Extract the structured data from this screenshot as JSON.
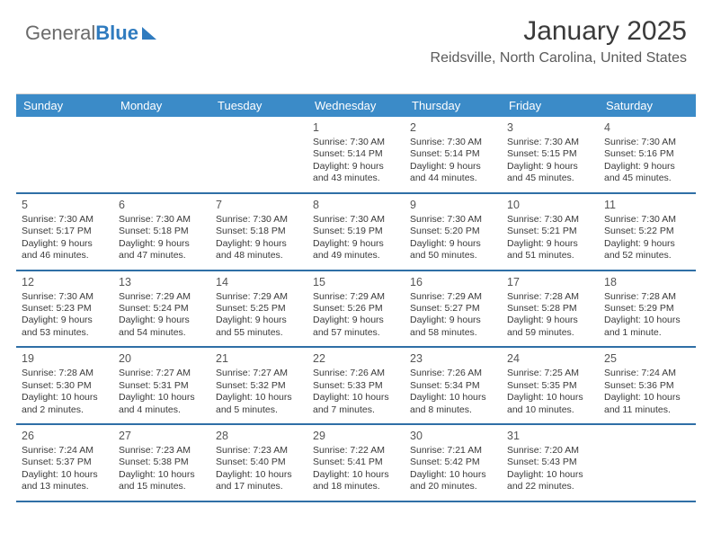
{
  "logo": {
    "part1": "General",
    "part2": "Blue"
  },
  "title": "January 2025",
  "subtitle": "Reidsville, North Carolina, United States",
  "colors": {
    "header_bg": "#3b8bc8",
    "header_text": "#ffffff",
    "week_border": "#2f6fa6",
    "text": "#3a3a3a",
    "logo_gray": "#6b6b6b",
    "logo_blue": "#2f7bbf"
  },
  "typography": {
    "title_fontsize": 30,
    "subtitle_fontsize": 16,
    "dayhead_fontsize": 13,
    "cell_fontsize": 10.5,
    "daynum_fontsize": 12.5
  },
  "day_names": [
    "Sunday",
    "Monday",
    "Tuesday",
    "Wednesday",
    "Thursday",
    "Friday",
    "Saturday"
  ],
  "weeks": [
    [
      {
        "blank": true
      },
      {
        "blank": true
      },
      {
        "blank": true
      },
      {
        "n": "1",
        "sr": "Sunrise: 7:30 AM",
        "ss": "Sunset: 5:14 PM",
        "d1": "Daylight: 9 hours",
        "d2": "and 43 minutes."
      },
      {
        "n": "2",
        "sr": "Sunrise: 7:30 AM",
        "ss": "Sunset: 5:14 PM",
        "d1": "Daylight: 9 hours",
        "d2": "and 44 minutes."
      },
      {
        "n": "3",
        "sr": "Sunrise: 7:30 AM",
        "ss": "Sunset: 5:15 PM",
        "d1": "Daylight: 9 hours",
        "d2": "and 45 minutes."
      },
      {
        "n": "4",
        "sr": "Sunrise: 7:30 AM",
        "ss": "Sunset: 5:16 PM",
        "d1": "Daylight: 9 hours",
        "d2": "and 45 minutes."
      }
    ],
    [
      {
        "n": "5",
        "sr": "Sunrise: 7:30 AM",
        "ss": "Sunset: 5:17 PM",
        "d1": "Daylight: 9 hours",
        "d2": "and 46 minutes."
      },
      {
        "n": "6",
        "sr": "Sunrise: 7:30 AM",
        "ss": "Sunset: 5:18 PM",
        "d1": "Daylight: 9 hours",
        "d2": "and 47 minutes."
      },
      {
        "n": "7",
        "sr": "Sunrise: 7:30 AM",
        "ss": "Sunset: 5:18 PM",
        "d1": "Daylight: 9 hours",
        "d2": "and 48 minutes."
      },
      {
        "n": "8",
        "sr": "Sunrise: 7:30 AM",
        "ss": "Sunset: 5:19 PM",
        "d1": "Daylight: 9 hours",
        "d2": "and 49 minutes."
      },
      {
        "n": "9",
        "sr": "Sunrise: 7:30 AM",
        "ss": "Sunset: 5:20 PM",
        "d1": "Daylight: 9 hours",
        "d2": "and 50 minutes."
      },
      {
        "n": "10",
        "sr": "Sunrise: 7:30 AM",
        "ss": "Sunset: 5:21 PM",
        "d1": "Daylight: 9 hours",
        "d2": "and 51 minutes."
      },
      {
        "n": "11",
        "sr": "Sunrise: 7:30 AM",
        "ss": "Sunset: 5:22 PM",
        "d1": "Daylight: 9 hours",
        "d2": "and 52 minutes."
      }
    ],
    [
      {
        "n": "12",
        "sr": "Sunrise: 7:30 AM",
        "ss": "Sunset: 5:23 PM",
        "d1": "Daylight: 9 hours",
        "d2": "and 53 minutes."
      },
      {
        "n": "13",
        "sr": "Sunrise: 7:29 AM",
        "ss": "Sunset: 5:24 PM",
        "d1": "Daylight: 9 hours",
        "d2": "and 54 minutes."
      },
      {
        "n": "14",
        "sr": "Sunrise: 7:29 AM",
        "ss": "Sunset: 5:25 PM",
        "d1": "Daylight: 9 hours",
        "d2": "and 55 minutes."
      },
      {
        "n": "15",
        "sr": "Sunrise: 7:29 AM",
        "ss": "Sunset: 5:26 PM",
        "d1": "Daylight: 9 hours",
        "d2": "and 57 minutes."
      },
      {
        "n": "16",
        "sr": "Sunrise: 7:29 AM",
        "ss": "Sunset: 5:27 PM",
        "d1": "Daylight: 9 hours",
        "d2": "and 58 minutes."
      },
      {
        "n": "17",
        "sr": "Sunrise: 7:28 AM",
        "ss": "Sunset: 5:28 PM",
        "d1": "Daylight: 9 hours",
        "d2": "and 59 minutes."
      },
      {
        "n": "18",
        "sr": "Sunrise: 7:28 AM",
        "ss": "Sunset: 5:29 PM",
        "d1": "Daylight: 10 hours",
        "d2": "and 1 minute."
      }
    ],
    [
      {
        "n": "19",
        "sr": "Sunrise: 7:28 AM",
        "ss": "Sunset: 5:30 PM",
        "d1": "Daylight: 10 hours",
        "d2": "and 2 minutes."
      },
      {
        "n": "20",
        "sr": "Sunrise: 7:27 AM",
        "ss": "Sunset: 5:31 PM",
        "d1": "Daylight: 10 hours",
        "d2": "and 4 minutes."
      },
      {
        "n": "21",
        "sr": "Sunrise: 7:27 AM",
        "ss": "Sunset: 5:32 PM",
        "d1": "Daylight: 10 hours",
        "d2": "and 5 minutes."
      },
      {
        "n": "22",
        "sr": "Sunrise: 7:26 AM",
        "ss": "Sunset: 5:33 PM",
        "d1": "Daylight: 10 hours",
        "d2": "and 7 minutes."
      },
      {
        "n": "23",
        "sr": "Sunrise: 7:26 AM",
        "ss": "Sunset: 5:34 PM",
        "d1": "Daylight: 10 hours",
        "d2": "and 8 minutes."
      },
      {
        "n": "24",
        "sr": "Sunrise: 7:25 AM",
        "ss": "Sunset: 5:35 PM",
        "d1": "Daylight: 10 hours",
        "d2": "and 10 minutes."
      },
      {
        "n": "25",
        "sr": "Sunrise: 7:24 AM",
        "ss": "Sunset: 5:36 PM",
        "d1": "Daylight: 10 hours",
        "d2": "and 11 minutes."
      }
    ],
    [
      {
        "n": "26",
        "sr": "Sunrise: 7:24 AM",
        "ss": "Sunset: 5:37 PM",
        "d1": "Daylight: 10 hours",
        "d2": "and 13 minutes."
      },
      {
        "n": "27",
        "sr": "Sunrise: 7:23 AM",
        "ss": "Sunset: 5:38 PM",
        "d1": "Daylight: 10 hours",
        "d2": "and 15 minutes."
      },
      {
        "n": "28",
        "sr": "Sunrise: 7:23 AM",
        "ss": "Sunset: 5:40 PM",
        "d1": "Daylight: 10 hours",
        "d2": "and 17 minutes."
      },
      {
        "n": "29",
        "sr": "Sunrise: 7:22 AM",
        "ss": "Sunset: 5:41 PM",
        "d1": "Daylight: 10 hours",
        "d2": "and 18 minutes."
      },
      {
        "n": "30",
        "sr": "Sunrise: 7:21 AM",
        "ss": "Sunset: 5:42 PM",
        "d1": "Daylight: 10 hours",
        "d2": "and 20 minutes."
      },
      {
        "n": "31",
        "sr": "Sunrise: 7:20 AM",
        "ss": "Sunset: 5:43 PM",
        "d1": "Daylight: 10 hours",
        "d2": "and 22 minutes."
      },
      {
        "blank": true
      }
    ]
  ]
}
